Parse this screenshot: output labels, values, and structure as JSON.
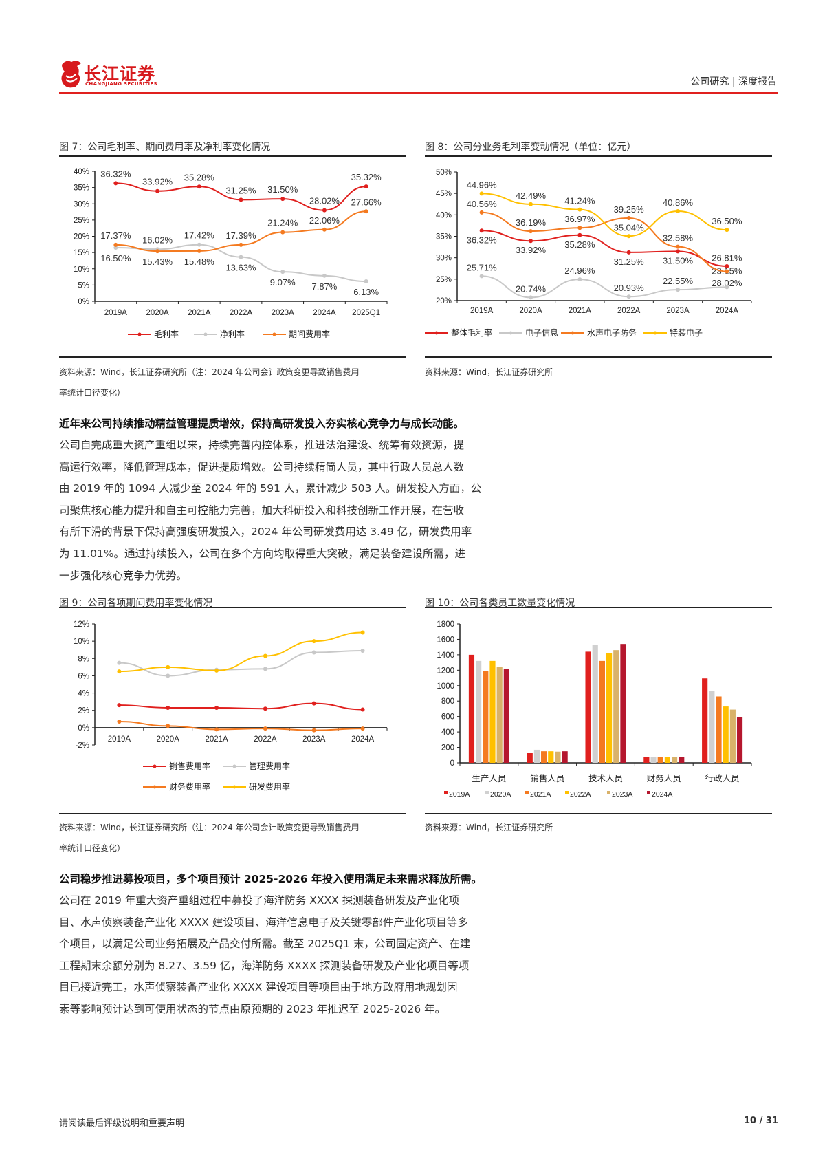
{
  "header": {
    "logo_cn": "长江证券",
    "logo_en": "CHANGJIANG SECURITIES",
    "category": "公司研究 | 深度报告"
  },
  "fig7": {
    "title": "图 7：公司毛利率、期间费用率及净利率变化情况",
    "source_1": "资料来源：Wind，长江证券研究所（注：2024 年公司会计政策变更导致销售费用",
    "source_2": "率统计口径变化）"
  },
  "fig8": {
    "title": "图 8：公司分业务毛利率变动情况（单位：亿元）",
    "source_1": "资料来源：Wind，长江证券研究所"
  },
  "fig9": {
    "title": "图 9：公司各项期间费用率变化情况",
    "source_1": "资料来源：Wind，长江证券研究所（注：2024 年公司会计政策变更导致销售费用",
    "source_2": "率统计口径变化）"
  },
  "fig10": {
    "title": "图 10：公司各类员工数量变化情况",
    "source_1": "资料来源：Wind，长江证券研究所"
  },
  "section1": {
    "heading": "近年来公司持续推动精益管理提质增效，保持高研发投入夯实核心竞争力与成长动能。",
    "lines": [
      "公司自完成重大资产重组以来，持续完善内控体系，推进法治建设、统筹有效资源，提",
      "高运行效率，降低管理成本，促进提质增效。公司持续精简人员，其中行政人员总人数",
      "由 2019 年的 1094 人减少至 2024 年的 591 人，累计减少 503 人。研发投入方面，公",
      "司聚焦核心能力提升和自主可控能力完善，加大科研投入和科技创新工作开展，在营收",
      "有所下滑的背景下保持高强度研发投入，2024 年公司研发费用达 3.49 亿，研发费用率",
      "为 11.01%。通过持续投入，公司在多个方向均取得重大突破，满足装备建设所需，进",
      "一步强化核心竞争力优势。"
    ]
  },
  "section2": {
    "heading": "公司稳步推进募投项目，多个项目预计 2025-2026 年投入使用满足未来需求释放所需。",
    "lines": [
      "公司在 2019 年重大资产重组过程中募投了海洋防务 XXXX 探测装备研发及产业化项",
      "目、水声侦察装备产业化 XXXX 建设项目、海洋信息电子及关键零部件产业化项目等多",
      "个项目，以满足公司业务拓展及产品交付所需。截至 2025Q1 末，公司固定资产、在建",
      "工程期末余额分别为 8.27、3.59 亿，海洋防务 XXXX 探测装备研发及产业化项目等项",
      "目已接近完工，水声侦察装备产业化 XXXX 建设项目等项目由于地方政府用地规划因",
      "素等影响预计达到可使用状态的节点由原预期的 2023 年推迟至 2025-2026 年。"
    ]
  },
  "footer": {
    "disclaimer": "请阅读最后评级说明和重要声明",
    "page": "10 / 31"
  },
  "chart_data": [
    {
      "id": "fig7",
      "type": "line",
      "categories": [
        "2019A",
        "2020A",
        "2021A",
        "2022A",
        "2023A",
        "2024A",
        "2025Q1"
      ],
      "ylim": [
        0,
        40
      ],
      "yticks": [
        0,
        5,
        10,
        15,
        20,
        25,
        30,
        35,
        40
      ],
      "tick_suffix": "%",
      "series": [
        {
          "name": "毛利率",
          "color": "#e0201e",
          "values": [
            36.32,
            33.92,
            35.28,
            31.25,
            31.5,
            28.02,
            35.32
          ]
        },
        {
          "name": "净利率",
          "color": "#c8c8c8",
          "values": [
            16.5,
            16.02,
            17.42,
            13.63,
            9.07,
            7.87,
            6.13
          ]
        },
        {
          "name": "期间费用率",
          "color": "#f47a20",
          "values": [
            17.37,
            15.43,
            15.48,
            17.39,
            21.24,
            22.06,
            27.66
          ]
        }
      ]
    },
    {
      "id": "fig8",
      "type": "line",
      "categories": [
        "2019A",
        "2020A",
        "2021A",
        "2022A",
        "2023A",
        "2024A"
      ],
      "ylim": [
        20,
        50
      ],
      "yticks": [
        20,
        25,
        30,
        35,
        40,
        45,
        50
      ],
      "tick_suffix": "%",
      "series": [
        {
          "name": "整体毛利率",
          "color": "#e0201e",
          "values": [
            36.32,
            33.92,
            35.28,
            31.25,
            31.5,
            28.02
          ]
        },
        {
          "name": "电子信息",
          "color": "#c8c8c8",
          "values": [
            25.71,
            20.74,
            24.96,
            20.93,
            22.55,
            23.15
          ]
        },
        {
          "name": "水声电子防务",
          "color": "#f47a20",
          "values": [
            40.56,
            36.19,
            36.97,
            39.25,
            32.58,
            26.81
          ]
        },
        {
          "name": "特装电子",
          "color": "#ffc000",
          "values": [
            44.96,
            42.49,
            41.24,
            35.04,
            40.86,
            36.5
          ]
        }
      ]
    },
    {
      "id": "fig9",
      "type": "line",
      "categories": [
        "2019A",
        "2020A",
        "2021A",
        "2022A",
        "2023A",
        "2024A"
      ],
      "ylim": [
        -2,
        12
      ],
      "yticks": [
        -2,
        0,
        2,
        4,
        6,
        8,
        10,
        12
      ],
      "tick_suffix": "%",
      "series": [
        {
          "name": "销售费用率",
          "color": "#e0201e",
          "values": [
            2.6,
            2.3,
            2.3,
            2.2,
            2.8,
            2.1
          ]
        },
        {
          "name": "管理费用率",
          "color": "#c8c8c8",
          "values": [
            7.5,
            6.0,
            6.7,
            6.8,
            8.7,
            8.9
          ]
        },
        {
          "name": "财务费用率",
          "color": "#f47a20",
          "values": [
            0.7,
            0.2,
            -0.2,
            -0.1,
            -0.3,
            -0.1
          ]
        },
        {
          "name": "研发费用率",
          "color": "#ffc000",
          "values": [
            6.5,
            7.0,
            6.6,
            8.3,
            10.0,
            11.01
          ]
        }
      ]
    },
    {
      "id": "fig10",
      "type": "bar",
      "categories": [
        "生产人员",
        "销售人员",
        "技术人员",
        "财务人员",
        "行政人员"
      ],
      "ylim": [
        0,
        1800
      ],
      "yticks": [
        0,
        200,
        400,
        600,
        800,
        1000,
        1200,
        1400,
        1600,
        1800
      ],
      "tick_suffix": "",
      "series": [
        {
          "name": "2019A",
          "color": "#e0201e",
          "values": [
            1400,
            130,
            1440,
            80,
            1094
          ]
        },
        {
          "name": "2020A",
          "color": "#d0d0d0",
          "values": [
            1320,
            170,
            1530,
            80,
            930
          ]
        },
        {
          "name": "2021A",
          "color": "#f47a20",
          "values": [
            1190,
            150,
            1320,
            75,
            860
          ]
        },
        {
          "name": "2022A",
          "color": "#ffc000",
          "values": [
            1320,
            150,
            1420,
            80,
            730
          ]
        },
        {
          "name": "2023A",
          "color": "#d9b26a",
          "values": [
            1240,
            145,
            1460,
            75,
            690
          ]
        },
        {
          "name": "2024A",
          "color": "#b5172e",
          "values": [
            1220,
            150,
            1540,
            80,
            591
          ]
        }
      ]
    }
  ]
}
